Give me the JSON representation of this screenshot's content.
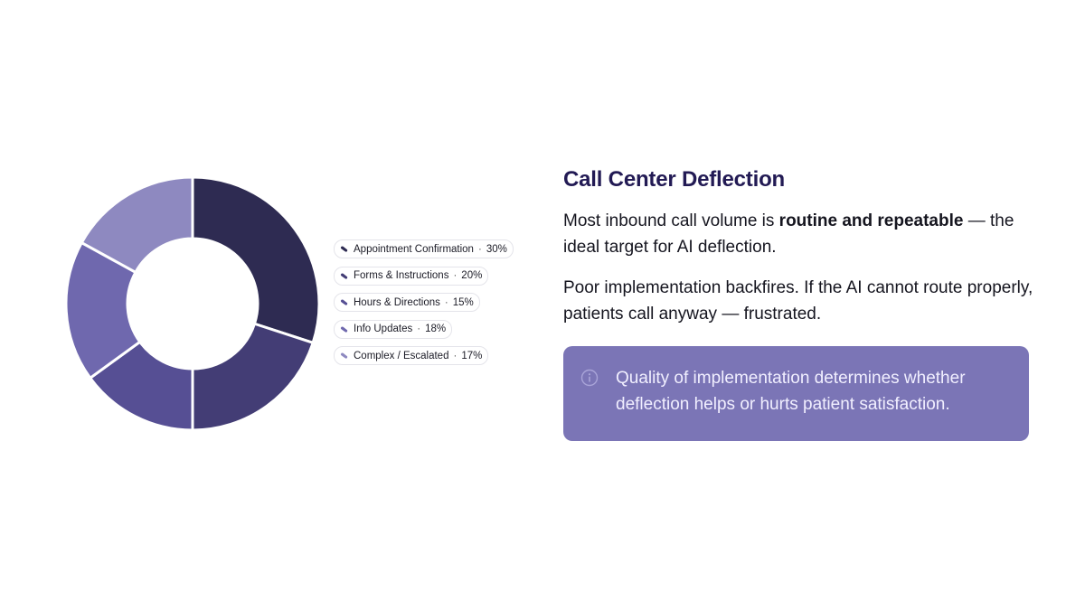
{
  "chart_data": {
    "type": "pie",
    "style": "donut",
    "title": "",
    "start": "top",
    "direction": "clockwise",
    "series": [
      {
        "name": "Appointment Confirmation",
        "value": 30,
        "label": "30%",
        "color": "#2e2b52"
      },
      {
        "name": "Forms & Instructions",
        "value": 20,
        "label": "20%",
        "color": "#433d75"
      },
      {
        "name": "Hours & Directions",
        "value": 15,
        "label": "15%",
        "color": "#564f94"
      },
      {
        "name": "Info Updates",
        "value": 18,
        "label": "18%",
        "color": "#6f68ae"
      },
      {
        "name": "Complex / Escalated",
        "value": 17,
        "label": "17%",
        "color": "#8e89c0"
      }
    ]
  },
  "legend_separator": "·",
  "content": {
    "title": "Call Center Deflection",
    "para1_before": "Most inbound call volume is ",
    "para1_bold": "routine and repeatable",
    "para1_after": " — the ideal target for AI deflection.",
    "para2": "Poor implementation backfires. If the AI cannot route properly, patients call anyway — frustrated."
  },
  "callout": {
    "icon": "info-icon",
    "text": "Quality of implementation determines whether deflection helps or hurts patient satisfaction.",
    "background": "#7b75b6"
  },
  "colors": {
    "heading": "#221a54",
    "body_text": "#15151f",
    "slice_border": "#ffffff"
  }
}
